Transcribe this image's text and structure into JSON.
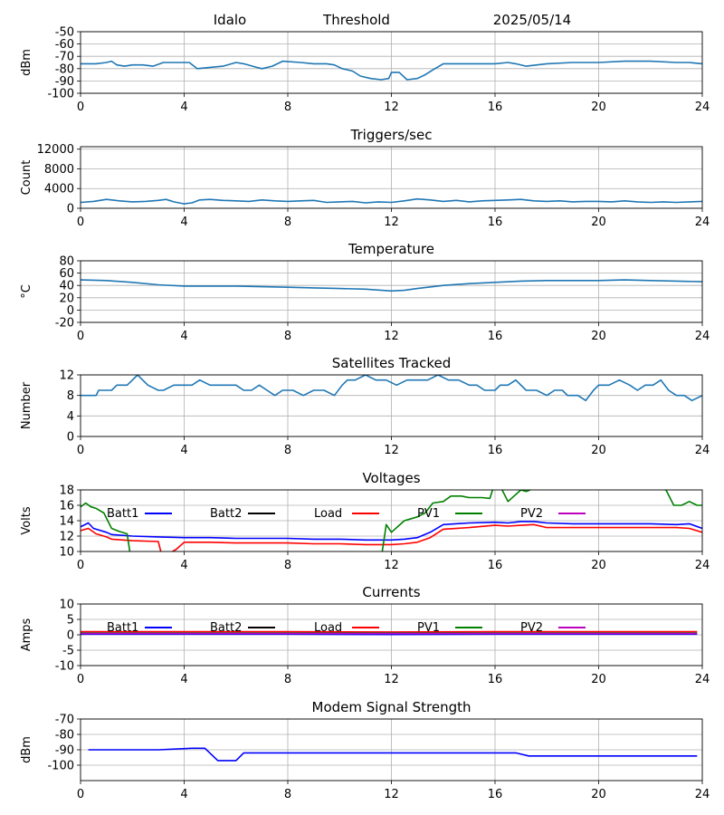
{
  "header": {
    "station": "Idalo",
    "mode": "Threshold",
    "date": "2025/05/14"
  },
  "colors": {
    "primary": "#1f77b4",
    "grid": "#b0b0b0",
    "batt1": "#0000ff",
    "batt2": "#000000",
    "load": "#ff0000",
    "pv1": "#008000",
    "pv2": "#bf00bf"
  },
  "chart_data": [
    {
      "id": "threshold",
      "type": "line",
      "title": "",
      "xlabel": "",
      "ylabel": "dBm",
      "xlim": [
        0,
        24
      ],
      "ylim": [
        -100,
        -50
      ],
      "xticks": [
        0,
        4,
        8,
        12,
        16,
        20,
        24
      ],
      "yticks": [
        -100,
        -90,
        -80,
        -70,
        -60,
        -50
      ],
      "grid": true,
      "series": [
        {
          "color": "#1f77b4",
          "x": [
            0,
            0.3,
            0.6,
            1,
            1.2,
            1.4,
            1.7,
            2,
            2.4,
            2.8,
            3.2,
            3.6,
            4,
            4.2,
            4.5,
            5,
            5.5,
            6,
            6.3,
            6.8,
            7,
            7.4,
            7.8,
            8.5,
            9,
            9.5,
            9.8,
            10.1,
            10.5,
            10.8,
            11.2,
            11.6,
            11.9,
            12,
            12.3,
            12.6,
            13,
            13.3,
            13.6,
            14,
            15,
            16,
            16.5,
            16.8,
            17.2,
            18,
            19,
            20,
            21,
            22,
            23,
            23.5,
            24
          ],
          "y": [
            -76,
            -76,
            -76,
            -75,
            -74,
            -77,
            -78,
            -77,
            -77,
            -78,
            -75,
            -75,
            -75,
            -75,
            -80,
            -79,
            -78,
            -75,
            -76,
            -79,
            -80,
            -78,
            -74,
            -75,
            -76,
            -76,
            -77,
            -80,
            -82,
            -86,
            -88,
            -89,
            -88,
            -83,
            -83,
            -89,
            -88,
            -85,
            -81,
            -76,
            -76,
            -76,
            -75,
            -76,
            -78,
            -76,
            -75,
            -75,
            -74,
            -74,
            -75,
            -75,
            -76
          ]
        }
      ]
    },
    {
      "id": "triggers",
      "type": "line",
      "title": "Triggers/sec",
      "xlabel": "",
      "ylabel": "Count",
      "xlim": [
        0,
        24
      ],
      "ylim": [
        0,
        12500
      ],
      "xticks": [
        0,
        4,
        8,
        12,
        16,
        20,
        24
      ],
      "yticks": [
        0,
        4000,
        8000,
        12000
      ],
      "grid": true,
      "series": [
        {
          "color": "#1f77b4",
          "x": [
            0,
            0.5,
            1,
            1.5,
            2,
            2.5,
            3,
            3.3,
            3.6,
            4,
            4.3,
            4.6,
            5,
            5.5,
            6,
            6.5,
            7,
            7.5,
            8,
            8.5,
            9,
            9.5,
            10,
            10.5,
            11,
            11.5,
            12,
            12.5,
            13,
            13.5,
            14,
            14.5,
            15,
            15.5,
            16,
            16.5,
            17,
            17.5,
            18,
            18.5,
            19,
            19.5,
            20,
            20.5,
            21,
            21.5,
            22,
            22.5,
            23,
            23.5,
            24
          ],
          "y": [
            1200,
            1400,
            1800,
            1500,
            1300,
            1400,
            1600,
            1800,
            1300,
            900,
            1100,
            1700,
            1800,
            1600,
            1500,
            1400,
            1700,
            1500,
            1400,
            1500,
            1600,
            1200,
            1300,
            1400,
            1100,
            1300,
            1200,
            1500,
            1900,
            1700,
            1400,
            1600,
            1300,
            1500,
            1600,
            1700,
            1800,
            1500,
            1400,
            1500,
            1300,
            1400,
            1400,
            1300,
            1500,
            1300,
            1200,
            1300,
            1200,
            1300,
            1400
          ]
        }
      ]
    },
    {
      "id": "temperature",
      "type": "line",
      "title": "Temperature",
      "xlabel": "",
      "ylabel": "°C",
      "xlim": [
        0,
        24
      ],
      "ylim": [
        -20,
        80
      ],
      "xticks": [
        0,
        4,
        8,
        12,
        16,
        20,
        24
      ],
      "yticks": [
        -20,
        0,
        20,
        40,
        60,
        80
      ],
      "grid": true,
      "series": [
        {
          "color": "#1f77b4",
          "x": [
            0,
            1,
            2,
            3,
            4,
            5,
            6,
            7,
            8,
            9,
            10,
            11,
            12,
            12.5,
            13,
            14,
            15,
            16,
            17,
            18,
            19,
            20,
            21,
            22,
            23,
            24
          ],
          "y": [
            49,
            48,
            45,
            41,
            39,
            39,
            39,
            38,
            37,
            36,
            35,
            34,
            31,
            32,
            35,
            40,
            43,
            45,
            47,
            48,
            48,
            48,
            49,
            48,
            47,
            46
          ]
        }
      ]
    },
    {
      "id": "satellites",
      "type": "line",
      "title": "Satellites Tracked",
      "xlabel": "",
      "ylabel": "Number",
      "xlim": [
        0,
        24
      ],
      "ylim": [
        0,
        12
      ],
      "xticks": [
        0,
        4,
        8,
        12,
        16,
        20,
        24
      ],
      "yticks": [
        0,
        4,
        8,
        12
      ],
      "grid": true,
      "series": [
        {
          "color": "#1f77b4",
          "x": [
            0,
            0.6,
            0.7,
            1.2,
            1.4,
            1.8,
            2,
            2.2,
            2.4,
            2.6,
            3,
            3.2,
            3.6,
            4,
            4.3,
            4.6,
            5,
            5.3,
            5.6,
            6,
            6.3,
            6.6,
            6.9,
            7.2,
            7.5,
            7.8,
            8.2,
            8.6,
            9,
            9.4,
            9.8,
            10.1,
            10.3,
            10.6,
            11,
            11.4,
            11.8,
            12.2,
            12.6,
            13,
            13.4,
            13.8,
            14.2,
            14.6,
            15,
            15.3,
            15.6,
            16,
            16.2,
            16.5,
            16.8,
            17.2,
            17.6,
            18,
            18.3,
            18.6,
            18.8,
            19.2,
            19.5,
            19.8,
            20,
            20.4,
            20.8,
            21.2,
            21.5,
            21.8,
            22.1,
            22.4,
            22.7,
            23,
            23.3,
            23.6,
            24
          ],
          "y": [
            8,
            8,
            9,
            9,
            10,
            10,
            11,
            12,
            11,
            10,
            9,
            9,
            10,
            10,
            10,
            11,
            10,
            10,
            10,
            10,
            9,
            9,
            10,
            9,
            8,
            9,
            9,
            8,
            9,
            9,
            8,
            10,
            11,
            11,
            12,
            11,
            11,
            10,
            11,
            11,
            11,
            12,
            11,
            11,
            10,
            10,
            9,
            9,
            10,
            10,
            11,
            9,
            9,
            8,
            9,
            9,
            8,
            8,
            7,
            9,
            10,
            10,
            11,
            10,
            9,
            10,
            10,
            11,
            9,
            8,
            8,
            7,
            8
          ]
        }
      ]
    },
    {
      "id": "voltages",
      "type": "line",
      "title": "Voltages",
      "xlabel": "",
      "ylabel": "Volts",
      "xlim": [
        0,
        24
      ],
      "ylim": [
        10,
        18
      ],
      "xticks": [
        0,
        4,
        8,
        12,
        16,
        20,
        24
      ],
      "yticks": [
        10,
        12,
        14,
        16,
        18
      ],
      "grid": true,
      "legend": "top",
      "series": [
        {
          "name": "Batt1",
          "color": "#0000ff",
          "x": [
            0,
            0.3,
            0.5,
            1,
            1.2,
            2,
            3,
            4,
            5,
            6,
            7,
            8,
            9,
            10,
            11,
            12,
            12.5,
            13,
            13.5,
            14,
            15,
            16,
            16.5,
            17,
            17.5,
            18,
            19,
            20,
            21,
            22,
            23,
            23.5,
            24
          ],
          "y": [
            13.2,
            13.7,
            13,
            12.5,
            12.2,
            12,
            11.9,
            11.8,
            11.8,
            11.7,
            11.7,
            11.7,
            11.6,
            11.6,
            11.5,
            11.5,
            11.6,
            11.8,
            12.5,
            13.5,
            13.7,
            13.8,
            13.7,
            13.9,
            13.9,
            13.7,
            13.6,
            13.6,
            13.6,
            13.6,
            13.5,
            13.6,
            13
          ]
        },
        {
          "name": "Batt2",
          "color": "#000000",
          "x": [],
          "y": []
        },
        {
          "name": "Load",
          "color": "#ff0000",
          "x": [
            0,
            0.3,
            0.6,
            1,
            1.2,
            2,
            3,
            3.1,
            3.4,
            3.7,
            4,
            5,
            6,
            7,
            8,
            9,
            10,
            11,
            12,
            12.5,
            13,
            13.5,
            14,
            15,
            16,
            16.5,
            17,
            17.5,
            18,
            19,
            20,
            21,
            22,
            23,
            23.5,
            24
          ],
          "y": [
            12.7,
            13,
            12.3,
            11.9,
            11.6,
            11.4,
            11.3,
            10,
            9.7,
            10.3,
            11.2,
            11.2,
            11.1,
            11.1,
            11.1,
            11,
            11,
            10.9,
            10.9,
            11,
            11.2,
            11.8,
            12.9,
            13.1,
            13.4,
            13.3,
            13.4,
            13.5,
            13.1,
            13.1,
            13.1,
            13.1,
            13.1,
            13.1,
            13,
            12.5
          ]
        },
        {
          "name": "PV1",
          "color": "#008000",
          "x": [
            0,
            0.2,
            0.4,
            0.6,
            0.9,
            1.2,
            1.5,
            1.8,
            1.9,
            2,
            11.6,
            11.8,
            12,
            12.5,
            13,
            13.3,
            13.6,
            14,
            14.3,
            14.7,
            15,
            15.5,
            15.8,
            16,
            16.2,
            16.5,
            17,
            17.2,
            17.5,
            18,
            19,
            20,
            21,
            22,
            22.6,
            22.9,
            23.2,
            23.5,
            23.8,
            24
          ],
          "y": [
            15.8,
            16.3,
            15.8,
            15.6,
            15,
            13,
            12.6,
            12.3,
            10,
            9,
            9,
            13.5,
            12.5,
            14,
            14.5,
            15,
            16.3,
            16.5,
            17.2,
            17.2,
            17,
            17,
            16.9,
            19,
            18.5,
            16.5,
            18,
            17.8,
            18.2,
            18.3,
            18.3,
            18.3,
            18.3,
            18.3,
            18,
            16,
            16,
            16.5,
            16,
            16
          ]
        },
        {
          "name": "PV2",
          "color": "#bf00bf",
          "x": [],
          "y": []
        }
      ]
    },
    {
      "id": "currents",
      "type": "line",
      "title": "Currents",
      "xlabel": "",
      "ylabel": "Amps",
      "xlim": [
        0,
        24
      ],
      "ylim": [
        -10,
        10
      ],
      "xticks": [
        0,
        4,
        8,
        12,
        16,
        20,
        24
      ],
      "yticks": [
        -10,
        -5,
        0,
        5,
        10
      ],
      "grid": true,
      "legend": "top",
      "series": [
        {
          "name": "Batt1",
          "color": "#0000ff",
          "x": [
            0,
            4,
            8,
            12,
            16,
            20,
            23.8
          ],
          "y": [
            0.2,
            0.2,
            0.2,
            0.1,
            0.2,
            0.2,
            0.2
          ]
        },
        {
          "name": "Batt2",
          "color": "#000000",
          "x": [],
          "y": []
        },
        {
          "name": "Load",
          "color": "#ff0000",
          "x": [
            0,
            4,
            8,
            12,
            16,
            20,
            23.8
          ],
          "y": [
            1,
            1,
            1,
            0.9,
            1,
            1,
            1
          ]
        },
        {
          "name": "PV1",
          "color": "#008000",
          "x": [
            0,
            4,
            8,
            12,
            16,
            20,
            23.8
          ],
          "y": [
            0.6,
            0.6,
            0.6,
            0.6,
            0.6,
            0.6,
            0.6
          ]
        },
        {
          "name": "PV2",
          "color": "#bf00bf",
          "x": [
            0,
            4,
            8,
            12,
            16,
            20,
            23.8
          ],
          "y": [
            0.4,
            0.4,
            0.4,
            0.4,
            0.4,
            0.4,
            0.4
          ]
        }
      ]
    },
    {
      "id": "modem",
      "type": "line",
      "title": "Modem Signal Strength",
      "xlabel": "",
      "ylabel": "dBm",
      "xlim": [
        0,
        24
      ],
      "ylim": [
        -110,
        -70
      ],
      "xticks": [
        0,
        4,
        8,
        12,
        16,
        20,
        24
      ],
      "yticks": [
        -100,
        -90,
        -80,
        -70
      ],
      "grid": true,
      "series": [
        {
          "color": "#0000ff",
          "x": [
            0.3,
            3,
            4.3,
            4.8,
            5.3,
            5.5,
            6,
            6.3,
            8,
            10,
            12,
            14,
            16,
            16.8,
            17.3,
            20,
            23.8
          ],
          "y": [
            -90,
            -90,
            -89,
            -89,
            -97,
            -97,
            -97,
            -92,
            -92,
            -92,
            -92,
            -92,
            -92,
            -92,
            -94,
            -94,
            -94
          ]
        }
      ]
    }
  ]
}
